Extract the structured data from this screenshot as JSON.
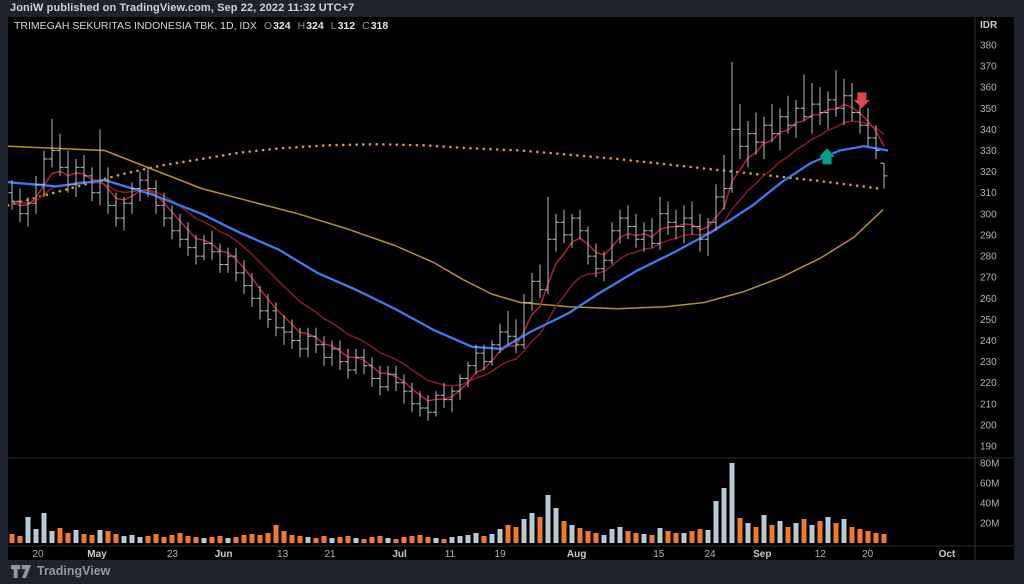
{
  "publish_bar": {
    "text": "JoniW published on TradingView.com, Sep 22, 2022 11:32 UTC+7"
  },
  "legend": {
    "title": "TRIMEGAH SEKURITAS INDONESIA TBK, 1D, IDX",
    "ohlc": [
      {
        "label": "O",
        "value": "324"
      },
      {
        "label": "H",
        "value": "324"
      },
      {
        "label": "L",
        "value": "312"
      },
      {
        "label": "C",
        "value": "318"
      }
    ]
  },
  "footer": {
    "brand": "TradingView"
  },
  "price_axis": {
    "currency": "IDR",
    "max": 380,
    "min": 190,
    "step": 10
  },
  "volume_axis": {
    "labels": [
      "80M",
      "60M",
      "40M",
      "20M"
    ],
    "values": [
      80,
      60,
      40,
      20
    ]
  },
  "time_axis": {
    "ticks": [
      {
        "label": "20",
        "pos": 0.031
      },
      {
        "label": "May",
        "pos": 0.092,
        "major": true
      },
      {
        "label": "23",
        "pos": 0.17
      },
      {
        "label": "Jun",
        "pos": 0.223,
        "major": true
      },
      {
        "label": "13",
        "pos": 0.284
      },
      {
        "label": "21",
        "pos": 0.333
      },
      {
        "label": "Jul",
        "pos": 0.405,
        "major": true
      },
      {
        "label": "11",
        "pos": 0.457
      },
      {
        "label": "19",
        "pos": 0.509
      },
      {
        "label": "Aug",
        "pos": 0.588,
        "major": true
      },
      {
        "label": "15",
        "pos": 0.673
      },
      {
        "label": "24",
        "pos": 0.726
      },
      {
        "label": "Sep",
        "pos": 0.78,
        "major": true
      },
      {
        "label": "12",
        "pos": 0.84
      },
      {
        "label": "20",
        "pos": 0.889
      },
      {
        "label": "Oct",
        "pos": 0.971,
        "major": true
      }
    ]
  },
  "chart_data": {
    "type": "bar",
    "symbol": "TRIMEGAH SEKURITAS INDONESIA TBK",
    "interval": "1D",
    "exchange": "IDX",
    "ohlc_last": {
      "open": 324,
      "high": 324,
      "low": 312,
      "close": 318
    },
    "price_range": [
      190,
      380
    ],
    "volume_range_millions": [
      0,
      80
    ],
    "bar_color": "#b9bdc7",
    "volume_colors": {
      "up": "#b5cdd2",
      "down": "#f57b20"
    },
    "bars_ohlcv": [
      [
        310,
        316,
        302,
        306,
        9
      ],
      [
        306,
        312,
        296,
        300,
        7
      ],
      [
        300,
        308,
        294,
        305,
        26
      ],
      [
        305,
        318,
        300,
        314,
        14
      ],
      [
        314,
        330,
        308,
        326,
        30
      ],
      [
        326,
        345,
        322,
        330,
        12
      ],
      [
        330,
        338,
        318,
        322,
        15
      ],
      [
        322,
        330,
        310,
        314,
        10
      ],
      [
        314,
        326,
        308,
        322,
        13
      ],
      [
        322,
        328,
        314,
        318,
        9
      ],
      [
        318,
        322,
        306,
        310,
        8
      ],
      [
        310,
        340,
        304,
        316,
        13
      ],
      [
        316,
        322,
        300,
        304,
        12
      ],
      [
        304,
        310,
        294,
        298,
        9
      ],
      [
        298,
        308,
        292,
        305,
        7
      ],
      [
        305,
        315,
        300,
        312,
        8
      ],
      [
        312,
        320,
        306,
        316,
        6
      ],
      [
        316,
        322,
        308,
        312,
        7
      ],
      [
        312,
        316,
        300,
        304,
        9
      ],
      [
        304,
        310,
        294,
        298,
        6
      ],
      [
        298,
        304,
        288,
        292,
        8
      ],
      [
        292,
        300,
        284,
        288,
        10
      ],
      [
        288,
        296,
        280,
        284,
        7
      ],
      [
        284,
        290,
        276,
        280,
        6
      ],
      [
        280,
        290,
        278,
        286,
        5
      ],
      [
        286,
        292,
        278,
        282,
        6
      ],
      [
        282,
        286,
        272,
        276,
        7
      ],
      [
        276,
        284,
        272,
        280,
        5
      ],
      [
        280,
        284,
        268,
        272,
        6
      ],
      [
        272,
        278,
        262,
        266,
        8
      ],
      [
        266,
        272,
        256,
        260,
        9
      ],
      [
        260,
        266,
        250,
        254,
        8
      ],
      [
        254,
        262,
        246,
        250,
        10
      ],
      [
        254,
        258,
        242,
        246,
        18
      ],
      [
        246,
        252,
        238,
        244,
        12
      ],
      [
        244,
        250,
        236,
        240,
        8
      ],
      [
        240,
        246,
        232,
        236,
        7
      ],
      [
        236,
        246,
        232,
        242,
        6
      ],
      [
        242,
        246,
        234,
        238,
        5
      ],
      [
        238,
        242,
        228,
        232,
        7
      ],
      [
        232,
        240,
        228,
        236,
        5
      ],
      [
        236,
        240,
        226,
        230,
        6
      ],
      [
        230,
        236,
        222,
        226,
        7
      ],
      [
        226,
        236,
        224,
        232,
        5
      ],
      [
        232,
        236,
        224,
        228,
        4
      ],
      [
        228,
        232,
        218,
        222,
        6
      ],
      [
        222,
        228,
        214,
        218,
        7
      ],
      [
        218,
        228,
        216,
        224,
        5
      ],
      [
        224,
        228,
        216,
        220,
        4
      ],
      [
        220,
        224,
        210,
        216,
        6
      ],
      [
        216,
        220,
        206,
        210,
        7
      ],
      [
        210,
        216,
        204,
        208,
        8
      ],
      [
        208,
        214,
        202,
        206,
        6
      ],
      [
        206,
        216,
        204,
        214,
        5
      ],
      [
        214,
        220,
        208,
        212,
        4
      ],
      [
        212,
        218,
        206,
        216,
        6
      ],
      [
        216,
        224,
        212,
        222,
        7
      ],
      [
        222,
        230,
        218,
        228,
        8
      ],
      [
        228,
        238,
        224,
        234,
        10
      ],
      [
        234,
        238,
        226,
        230,
        7
      ],
      [
        230,
        240,
        228,
        238,
        9
      ],
      [
        238,
        248,
        234,
        244,
        14
      ],
      [
        244,
        254,
        238,
        242,
        18
      ],
      [
        242,
        250,
        234,
        238,
        16
      ],
      [
        238,
        262,
        236,
        258,
        24
      ],
      [
        258,
        272,
        254,
        268,
        30
      ],
      [
        268,
        276,
        260,
        264,
        26
      ],
      [
        264,
        308,
        262,
        288,
        48
      ],
      [
        288,
        300,
        282,
        296,
        35
      ],
      [
        296,
        302,
        286,
        290,
        22
      ],
      [
        290,
        300,
        284,
        298,
        18
      ],
      [
        298,
        302,
        288,
        292,
        15
      ],
      [
        292,
        294,
        276,
        280,
        12
      ],
      [
        280,
        286,
        270,
        274,
        10
      ],
      [
        274,
        282,
        268,
        278,
        8
      ],
      [
        278,
        296,
        276,
        292,
        14
      ],
      [
        292,
        302,
        286,
        298,
        16
      ],
      [
        298,
        304,
        288,
        294,
        12
      ],
      [
        294,
        300,
        284,
        288,
        10
      ],
      [
        288,
        296,
        282,
        292,
        9
      ],
      [
        292,
        298,
        284,
        286,
        8
      ],
      [
        286,
        308,
        283,
        300,
        15
      ],
      [
        300,
        306,
        290,
        296,
        12
      ],
      [
        296,
        302,
        288,
        294,
        10
      ],
      [
        294,
        304,
        286,
        298,
        10
      ],
      [
        298,
        306,
        290,
        294,
        12
      ],
      [
        294,
        300,
        282,
        288,
        14
      ],
      [
        288,
        298,
        280,
        296,
        13
      ],
      [
        296,
        314,
        292,
        308,
        42
      ],
      [
        308,
        328,
        302,
        312,
        55
      ],
      [
        312,
        372,
        310,
        340,
        80
      ],
      [
        340,
        352,
        326,
        332,
        25
      ],
      [
        332,
        344,
        322,
        338,
        20
      ],
      [
        338,
        348,
        328,
        334,
        16
      ],
      [
        334,
        346,
        326,
        342,
        28
      ],
      [
        342,
        352,
        334,
        338,
        18
      ],
      [
        338,
        350,
        330,
        346,
        22
      ],
      [
        346,
        356,
        338,
        342,
        16
      ],
      [
        342,
        354,
        336,
        350,
        20
      ],
      [
        350,
        366,
        344,
        346,
        24
      ],
      [
        346,
        362,
        338,
        352,
        18
      ],
      [
        352,
        360,
        342,
        348,
        22
      ],
      [
        348,
        358,
        340,
        354,
        26
      ],
      [
        354,
        368,
        346,
        350,
        20
      ],
      [
        350,
        364,
        342,
        356,
        24
      ],
      [
        356,
        362,
        344,
        348,
        16
      ],
      [
        348,
        356,
        338,
        342,
        14
      ],
      [
        342,
        350,
        332,
        336,
        12
      ],
      [
        336,
        342,
        326,
        330,
        10
      ],
      [
        324,
        324,
        312,
        318,
        9
      ]
    ],
    "overlays": {
      "ema_fast": {
        "period": 5,
        "color": "#b42531"
      },
      "ema_slow": {
        "period": 13,
        "color": "#8a1a26"
      },
      "ma_mid_blue": {
        "color": "#3b7cf0",
        "points": [
          [
            0,
            315
          ],
          [
            0.05,
            313
          ],
          [
            0.1,
            316
          ],
          [
            0.15,
            309
          ],
          [
            0.2,
            300
          ],
          [
            0.24,
            291
          ],
          [
            0.28,
            283
          ],
          [
            0.32,
            272
          ],
          [
            0.36,
            264
          ],
          [
            0.4,
            255
          ],
          [
            0.44,
            245
          ],
          [
            0.48,
            237
          ],
          [
            0.51,
            236
          ],
          [
            0.54,
            244
          ],
          [
            0.58,
            253
          ],
          [
            0.61,
            262
          ],
          [
            0.65,
            273
          ],
          [
            0.69,
            282
          ],
          [
            0.73,
            292
          ],
          [
            0.77,
            304
          ],
          [
            0.8,
            315
          ],
          [
            0.83,
            324
          ],
          [
            0.86,
            330
          ],
          [
            0.885,
            332
          ],
          [
            0.91,
            330
          ]
        ]
      },
      "ma_long_yellow": {
        "color": "#b8931f",
        "points": [
          [
            0,
            332
          ],
          [
            0.05,
            331
          ],
          [
            0.1,
            330
          ],
          [
            0.15,
            321
          ],
          [
            0.2,
            312
          ],
          [
            0.25,
            306
          ],
          [
            0.3,
            300
          ],
          [
            0.35,
            293
          ],
          [
            0.4,
            285
          ],
          [
            0.44,
            277
          ],
          [
            0.47,
            269
          ],
          [
            0.5,
            262
          ],
          [
            0.53,
            258
          ],
          [
            0.58,
            256
          ],
          [
            0.63,
            255
          ],
          [
            0.68,
            256
          ],
          [
            0.72,
            258
          ],
          [
            0.76,
            263
          ],
          [
            0.8,
            270
          ],
          [
            0.84,
            279
          ],
          [
            0.875,
            289
          ],
          [
            0.905,
            302
          ]
        ]
      },
      "ma_longest_dotted": {
        "color": "#d7a31e",
        "points": [
          [
            0,
            304
          ],
          [
            0.04,
            309
          ],
          [
            0.08,
            314
          ],
          [
            0.12,
            319
          ],
          [
            0.16,
            323
          ],
          [
            0.2,
            326
          ],
          [
            0.24,
            329
          ],
          [
            0.28,
            331
          ],
          [
            0.33,
            332.5
          ],
          [
            0.38,
            333
          ],
          [
            0.43,
            332.5
          ],
          [
            0.48,
            331
          ],
          [
            0.53,
            330
          ],
          [
            0.58,
            328
          ],
          [
            0.63,
            326
          ],
          [
            0.68,
            323.5
          ],
          [
            0.72,
            321.5
          ],
          [
            0.76,
            319.5
          ],
          [
            0.8,
            317.5
          ],
          [
            0.84,
            315.5
          ],
          [
            0.875,
            313.5
          ],
          [
            0.9,
            312
          ]
        ]
      }
    },
    "markers": [
      {
        "shape": "arrow-down",
        "color": "#e0444d",
        "pos": 0.883,
        "price": 350
      },
      {
        "shape": "arrow-up",
        "color": "#00a18b",
        "pos": 0.847,
        "price": 331
      }
    ]
  },
  "ui_colors": {
    "background": "#000000",
    "frame": "#1e222d",
    "axis_text": "#aeb2ba",
    "separator": "#2a2e39"
  }
}
